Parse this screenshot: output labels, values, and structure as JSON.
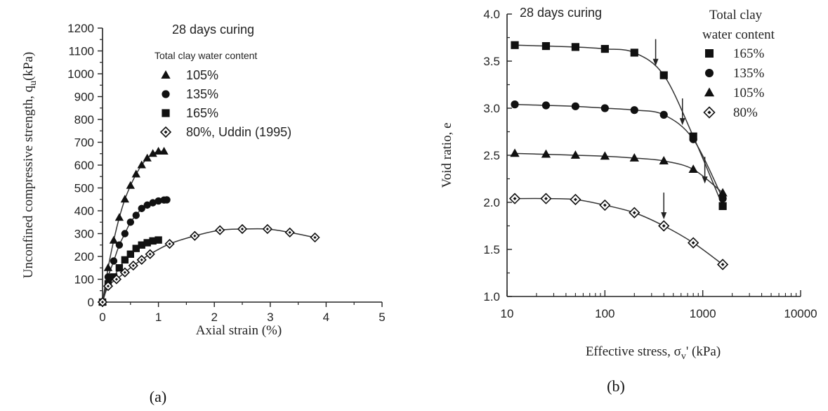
{
  "chart_data": [
    {
      "type": "scatter",
      "panel_label": "(a)",
      "annotation": "28 days curing",
      "legend_title": "Total clay water content",
      "xlabel": "Axial strain (%)",
      "ylabel": "Unconfined compressive strength, q",
      "ylabel_sub": "u",
      "ylabel_unit": "(kPa)",
      "xlim": [
        0,
        5
      ],
      "ylim": [
        0,
        1200
      ],
      "xticks": [
        "0",
        "1",
        "2",
        "3",
        "4",
        "5"
      ],
      "yticks": [
        "0",
        "100",
        "200",
        "300",
        "400",
        "500",
        "600",
        "700",
        "800",
        "900",
        "1000",
        "1100",
        "1200"
      ],
      "series": [
        {
          "name": "105%",
          "marker": "triangle",
          "x": [
            0,
            0.1,
            0.2,
            0.3,
            0.4,
            0.5,
            0.6,
            0.7,
            0.8,
            0.9,
            1.0,
            1.1
          ],
          "y": [
            0,
            150,
            270,
            370,
            450,
            510,
            560,
            600,
            630,
            650,
            660,
            660
          ]
        },
        {
          "name": "135%",
          "marker": "circle",
          "x": [
            0,
            0.1,
            0.2,
            0.3,
            0.4,
            0.5,
            0.6,
            0.7,
            0.8,
            0.9,
            1.0,
            1.1,
            1.15
          ],
          "y": [
            0,
            110,
            180,
            250,
            300,
            350,
            380,
            410,
            425,
            435,
            443,
            447,
            448
          ]
        },
        {
          "name": "165%",
          "marker": "square",
          "x": [
            0,
            0.1,
            0.2,
            0.3,
            0.4,
            0.5,
            0.6,
            0.7,
            0.8,
            0.9,
            1.0
          ],
          "y": [
            0,
            80,
            110,
            150,
            185,
            210,
            235,
            250,
            260,
            268,
            272
          ]
        },
        {
          "name": "80%, Uddin (1995)",
          "marker": "diamond",
          "x": [
            0,
            0.1,
            0.25,
            0.4,
            0.55,
            0.7,
            0.85,
            1.2,
            1.65,
            2.1,
            2.5,
            2.95,
            3.35,
            3.8
          ],
          "y": [
            0,
            70,
            100,
            130,
            160,
            185,
            210,
            255,
            290,
            315,
            320,
            320,
            305,
            283
          ]
        }
      ]
    },
    {
      "type": "line",
      "panel_label": "(b)",
      "annotation": "28 days curing",
      "legend_title": [
        "Total clay",
        "water content"
      ],
      "xlabel": "Effective stress, σ",
      "xlabel_sub": "v",
      "xlabel_unit": "' (kPa)",
      "ylabel": "Void ratio, e",
      "xscale": "log",
      "xlim": [
        10,
        10000
      ],
      "ylim": [
        1.0,
        4.0
      ],
      "xticks": [
        "10",
        "100",
        "1000",
        "10000"
      ],
      "yticks": [
        "1.0",
        "1.5",
        "2.0",
        "2.5",
        "3.0",
        "3.5",
        "4.0"
      ],
      "series": [
        {
          "name": "165%",
          "marker": "square",
          "x": [
            12,
            25,
            50,
            100,
            200,
            400,
            800,
            1600
          ],
          "y": [
            3.67,
            3.66,
            3.65,
            3.63,
            3.59,
            3.35,
            2.7,
            1.96
          ]
        },
        {
          "name": "135%",
          "marker": "circle",
          "x": [
            12,
            25,
            50,
            100,
            200,
            400,
            800,
            1600
          ],
          "y": [
            3.04,
            3.03,
            3.02,
            3.0,
            2.98,
            2.93,
            2.67,
            2.04
          ]
        },
        {
          "name": "105%",
          "marker": "triangle",
          "x": [
            12,
            25,
            50,
            100,
            200,
            400,
            800,
            1600
          ],
          "y": [
            2.52,
            2.51,
            2.5,
            2.49,
            2.47,
            2.44,
            2.35,
            2.1
          ]
        },
        {
          "name": "80%",
          "marker": "diamond",
          "x": [
            12,
            25,
            50,
            100,
            200,
            400,
            800,
            1600
          ],
          "y": [
            2.04,
            2.04,
            2.03,
            1.97,
            1.89,
            1.75,
            1.57,
            1.34
          ]
        }
      ],
      "arrows": [
        {
          "x": 330,
          "y": 3.45
        },
        {
          "x": 620,
          "y": 2.82
        },
        {
          "x": 1050,
          "y": 2.2
        },
        {
          "x": 400,
          "y": 1.82
        }
      ]
    }
  ]
}
